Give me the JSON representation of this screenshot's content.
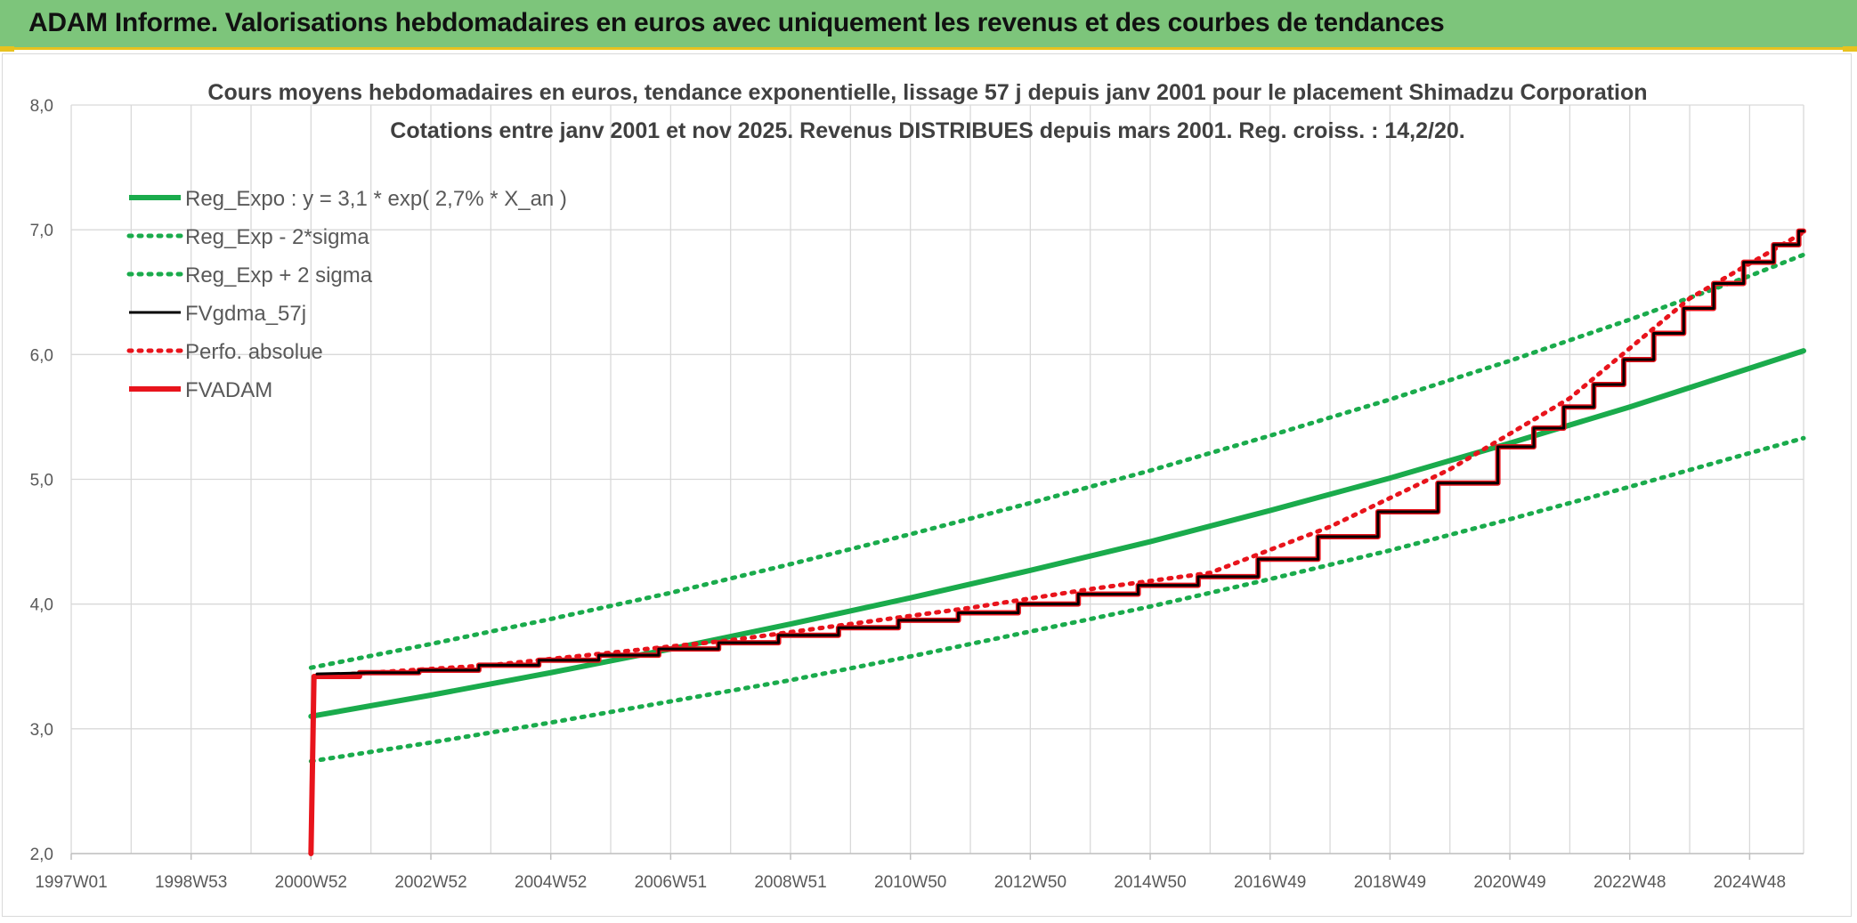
{
  "banner": {
    "title": "ADAM Informe. Valorisations hebdomadaires en euros avec uniquement les revenus et des courbes de tendances"
  },
  "colors": {
    "banner_bg": "#7dc57b",
    "accent_yellow": "#e8c21e",
    "green_series": "#1aab4c",
    "black_series": "#000000",
    "red_series": "#e8141c",
    "grid": "#d9d9d9",
    "axis_text": "#595959",
    "title_text": "#404040"
  },
  "chart_data": {
    "type": "line",
    "title": "Cours moyens hebdomadaires en euros, tendance exponentielle, lissage 57 j depuis janv 2001 pour le placement Shimadzu Corporation",
    "subtitle": "Cotations entre janv 2001 et nov 2025. Revenus DISTRIBUES depuis mars 2001. Reg. croiss. : 14,2/20.",
    "xlabel": "",
    "ylabel": "",
    "x_range_years": [
      1997.0,
      2025.9
    ],
    "ylim": [
      2.0,
      8.0
    ],
    "y_ticks": [
      "2,0",
      "3,0",
      "4,0",
      "5,0",
      "6,0",
      "7,0",
      "8,0"
    ],
    "x_ticks": [
      "1997W01",
      "1998W53",
      "2000W52",
      "2002W52",
      "2004W52",
      "2006W51",
      "2008W51",
      "2010W50",
      "2012W50",
      "2014W50",
      "2016W49",
      "2018W49",
      "2020W49",
      "2022W48",
      "2024W48"
    ],
    "x_tick_years": [
      1997.0,
      1999.0,
      2001.0,
      2003.0,
      2005.0,
      2007.0,
      2009.0,
      2011.0,
      2013.0,
      2015.0,
      2017.0,
      2019.0,
      2021.0,
      2023.0,
      2025.0
    ],
    "legend_position": "top-left",
    "grid": true,
    "series": [
      {
        "name": "Reg_Expo : y = 3,1 * exp( 2,7% *  X_an )",
        "style": "solid-thick",
        "color": "#1aab4c",
        "x": [
          2001.0,
          2003.0,
          2005.0,
          2007.0,
          2009.0,
          2011.0,
          2013.0,
          2015.0,
          2017.0,
          2019.0,
          2021.0,
          2023.0,
          2025.0,
          2025.9
        ],
        "values": [
          3.1,
          3.27,
          3.45,
          3.64,
          3.84,
          4.05,
          4.27,
          4.5,
          4.75,
          5.01,
          5.29,
          5.58,
          5.89,
          6.03
        ]
      },
      {
        "name": "Reg_Exp - 2*sigma",
        "style": "dotted",
        "color": "#1aab4c",
        "x": [
          2001.0,
          2003.0,
          2005.0,
          2007.0,
          2009.0,
          2011.0,
          2013.0,
          2015.0,
          2017.0,
          2019.0,
          2021.0,
          2023.0,
          2025.0,
          2025.9
        ],
        "values": [
          2.74,
          2.89,
          3.05,
          3.22,
          3.39,
          3.58,
          3.78,
          3.98,
          4.2,
          4.43,
          4.68,
          4.94,
          5.21,
          5.33
        ]
      },
      {
        "name": "Reg_Exp + 2 sigma",
        "style": "dotted",
        "color": "#1aab4c",
        "x": [
          2001.0,
          2003.0,
          2005.0,
          2007.0,
          2009.0,
          2011.0,
          2013.0,
          2015.0,
          2017.0,
          2019.0,
          2021.0,
          2023.0,
          2025.0,
          2025.9
        ],
        "values": [
          3.49,
          3.68,
          3.88,
          4.09,
          4.32,
          4.56,
          4.81,
          5.07,
          5.35,
          5.64,
          5.95,
          6.28,
          6.63,
          6.8
        ]
      },
      {
        "name": "FVgdma_57j",
        "style": "solid-thin",
        "color": "#000000",
        "x": [
          2001.1,
          2002.0,
          2003.0,
          2004.0,
          2005.0,
          2006.0,
          2007.0,
          2008.0,
          2009.0,
          2010.0,
          2011.0,
          2012.0,
          2013.0,
          2014.0,
          2015.0,
          2016.0,
          2017.0,
          2018.0,
          2019.0,
          2020.0,
          2021.0,
          2021.5,
          2022.0,
          2022.5,
          2023.0,
          2023.5,
          2024.0,
          2024.5,
          2025.0,
          2025.5,
          2025.9
        ],
        "values": [
          3.44,
          3.45,
          3.47,
          3.51,
          3.55,
          3.59,
          3.64,
          3.69,
          3.75,
          3.81,
          3.87,
          3.93,
          4.0,
          4.08,
          4.15,
          4.22,
          4.36,
          4.54,
          4.74,
          4.97,
          5.26,
          5.41,
          5.58,
          5.76,
          5.96,
          6.17,
          6.37,
          6.57,
          6.74,
          6.88,
          6.99
        ]
      },
      {
        "name": "Perfo. absolue",
        "style": "dotted",
        "color": "#e8141c",
        "x": [
          2001.0,
          2001.05,
          2002.0,
          2004.0,
          2006.0,
          2008.0,
          2010.0,
          2012.0,
          2014.0,
          2016.0,
          2018.0,
          2020.0,
          2022.0,
          2024.0,
          2025.9
        ],
        "values": [
          2.0,
          3.42,
          3.45,
          3.51,
          3.61,
          3.71,
          3.84,
          3.97,
          4.12,
          4.25,
          4.62,
          5.08,
          5.65,
          6.45,
          6.98
        ]
      },
      {
        "name": "FVADAM",
        "style": "solid-thick",
        "color": "#e8141c",
        "x": [
          2001.0,
          2001.05,
          2002.0,
          2003.0,
          2004.0,
          2005.0,
          2006.0,
          2007.0,
          2008.0,
          2009.0,
          2010.0,
          2011.0,
          2012.0,
          2013.0,
          2014.0,
          2015.0,
          2016.0,
          2017.0,
          2018.0,
          2019.0,
          2020.0,
          2021.0,
          2021.5,
          2022.0,
          2022.5,
          2023.0,
          2023.5,
          2024.0,
          2024.5,
          2025.0,
          2025.5,
          2025.9
        ],
        "values": [
          2.0,
          3.42,
          3.45,
          3.47,
          3.51,
          3.55,
          3.59,
          3.64,
          3.69,
          3.75,
          3.81,
          3.87,
          3.93,
          4.0,
          4.08,
          4.15,
          4.22,
          4.36,
          4.54,
          4.74,
          4.97,
          5.26,
          5.41,
          5.58,
          5.76,
          5.96,
          6.17,
          6.37,
          6.57,
          6.74,
          6.88,
          6.99
        ]
      }
    ]
  }
}
